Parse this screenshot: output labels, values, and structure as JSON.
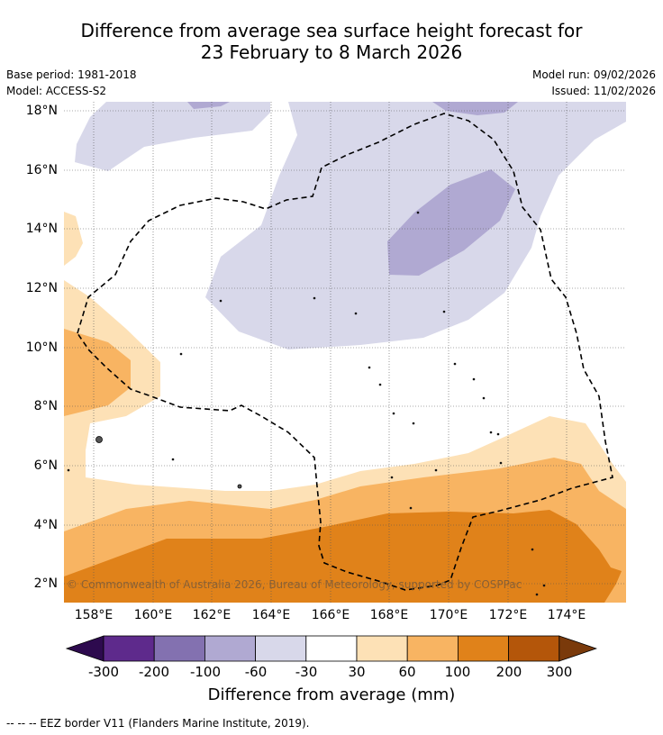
{
  "title": {
    "line1": "Difference from average sea surface height forecast for",
    "line2": "23 February to 8 March 2026"
  },
  "meta": {
    "base_period": "Base period: 1981-2018",
    "model": "Model: ACCESS-S2",
    "model_run": "Model run: 09/02/2026",
    "issued": "Issued: 11/02/2026"
  },
  "axes": {
    "lat_ticks": [
      "18°N",
      "16°N",
      "14°N",
      "12°N",
      "10°N",
      "8°N",
      "6°N",
      "4°N",
      "2°N"
    ],
    "lon_ticks": [
      "158°E",
      "160°E",
      "162°E",
      "164°E",
      "166°E",
      "168°E",
      "170°E",
      "172°E",
      "174°E"
    ],
    "lat_range": [
      1.4,
      18.3
    ],
    "lon_range": [
      157.0,
      176.0
    ]
  },
  "copyright": "© Commonwealth of Australia 2026, Bureau of Meteorology, supported by COSPPac",
  "colorbar": {
    "ticks": [
      "-300",
      "-200",
      "-100",
      "-60",
      "-30",
      "30",
      "60",
      "100",
      "200",
      "300"
    ],
    "colors": [
      "#2d0a4e",
      "#5e2a8c",
      "#8371b0",
      "#b0a9d2",
      "#d8d8ea",
      "#ffffff",
      "#fde1b6",
      "#f8b462",
      "#e0821a",
      "#b4560a",
      "#7a3a0b"
    ],
    "label": "Difference from average (mm)",
    "extend": "both"
  },
  "footnote": "--  --  -- EEZ border V11 (Flanders Marine Institute, 2019)."
}
